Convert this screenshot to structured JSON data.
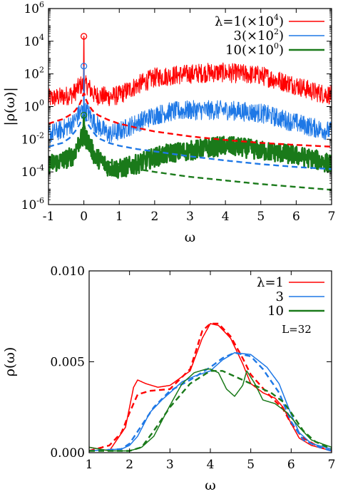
{
  "chart_data": [
    {
      "type": "line",
      "xlabel": "ω",
      "ylabel": "|ρ(ω)|",
      "xlim": [
        -1,
        7
      ],
      "ylim": [
        1e-06,
        1000000.0
      ],
      "yscale": "log",
      "xticks": [
        "-1",
        "0",
        "1",
        "2",
        "3",
        "4",
        "5",
        "6",
        "7"
      ],
      "yticks": [
        {
          "value": 1e-06,
          "base": "10",
          "exp": "-6"
        },
        {
          "value": 0.0001,
          "base": "10",
          "exp": "-4"
        },
        {
          "value": 0.01,
          "base": "10",
          "exp": "-2"
        },
        {
          "value": 1,
          "base": "10",
          "exp": "0"
        },
        {
          "value": 100,
          "base": "10",
          "exp": "2"
        },
        {
          "value": 10000,
          "base": "10",
          "exp": "4"
        },
        {
          "value": 1000000,
          "base": "10",
          "exp": "6"
        }
      ],
      "legend_position": "top-right",
      "legend": [
        {
          "text": "λ=1(×10",
          "exp": "4",
          "close": ")",
          "color": "#ff0000"
        },
        {
          "text": "3(×10",
          "exp": "2",
          "close": ")",
          "color": "#1e78e6"
        },
        {
          "text": "10(×10",
          "exp": "0",
          "close": ")",
          "color": "#1a7a1a"
        }
      ],
      "series": [
        {
          "color": "#ff0000",
          "style": "noisy",
          "peak": {
            "x": 0,
            "y": 20000
          },
          "x": [
            -1,
            -0.6,
            -0.3,
            -0.1,
            0.1,
            0.3,
            0.7,
            1,
            1.5,
            2,
            2.5,
            3,
            3.5,
            4,
            4.5,
            5,
            5.5,
            6,
            6.5,
            7
          ],
          "y": [
            3,
            4,
            6,
            20,
            20,
            5,
            4,
            5,
            20,
            60,
            80,
            100,
            120,
            120,
            100,
            80,
            40,
            20,
            8,
            5
          ]
        },
        {
          "color": "#1e78e6",
          "style": "noisy",
          "peak": {
            "x": 0,
            "y": 300
          },
          "x": [
            -1,
            -0.6,
            -0.3,
            -0.1,
            0.1,
            0.3,
            0.7,
            1,
            1.5,
            2,
            2.5,
            3,
            3.5,
            4,
            4.5,
            5,
            5.5,
            6,
            6.5,
            7
          ],
          "y": [
            0.02,
            0.04,
            0.1,
            0.5,
            0.5,
            0.1,
            0.02,
            0.03,
            0.1,
            0.3,
            0.5,
            0.6,
            0.6,
            0.6,
            0.5,
            0.4,
            0.2,
            0.1,
            0.05,
            0.03
          ]
        },
        {
          "color": "#1a7a1a",
          "style": "noisy-thick",
          "peak": {
            "x": 0,
            "y": 0.3
          },
          "x": [
            -1,
            -0.6,
            -0.3,
            -0.1,
            0.1,
            0.3,
            0.7,
            1,
            1.5,
            2,
            2.5,
            3,
            3.5,
            4,
            4.5,
            5,
            5.5,
            6,
            6.5,
            7
          ],
          "y": [
            0.0003,
            0.0005,
            0.001,
            0.01,
            0.01,
            0.001,
            0.0002,
            0.00015,
            0.0003,
            0.0008,
            0.0015,
            0.002,
            0.003,
            0.004,
            0.003,
            0.002,
            0.0015,
            0.001,
            0.0006,
            0.0003
          ]
        },
        {
          "color": "#ff0000",
          "style": "dashed",
          "x": [
            -1,
            -0.6,
            -0.4,
            -0.25,
            -0.12,
            -0.05,
            0,
            0.05,
            0.12,
            0.25,
            0.4,
            0.7,
            1,
            1.5,
            2,
            3,
            4,
            5,
            6,
            7
          ],
          "y": [
            0.09,
            0.17,
            0.3,
            0.55,
            1.4,
            3,
            8,
            3,
            1.4,
            0.55,
            0.3,
            0.15,
            0.09,
            0.05,
            0.03,
            0.015,
            0.009,
            0.006,
            0.0045,
            0.0035
          ]
        },
        {
          "color": "#1e78e6",
          "style": "dashed",
          "x": [
            -1,
            -0.6,
            -0.4,
            -0.25,
            -0.12,
            -0.05,
            0,
            0.05,
            0.12,
            0.25,
            0.4,
            0.7,
            1,
            1.5,
            2,
            3,
            4,
            5,
            6,
            7
          ],
          "y": [
            0.0035,
            0.006,
            0.012,
            0.03,
            0.08,
            0.2,
            0.5,
            0.2,
            0.08,
            0.03,
            0.012,
            0.006,
            0.004,
            0.0025,
            0.0018,
            0.0009,
            0.0005,
            0.0003,
            0.0002,
            0.00015
          ]
        },
        {
          "color": "#1a7a1a",
          "style": "dashed",
          "x": [
            -0.4,
            -0.25,
            -0.12,
            -0.05,
            0,
            0.05,
            0.12,
            0.25,
            0.4,
            0.7,
            1,
            1.5,
            2,
            3,
            4,
            5,
            6,
            7
          ],
          "y": [
            0.0008,
            0.002,
            0.006,
            0.03,
            0.1,
            0.03,
            0.006,
            0.002,
            0.0008,
            0.0004,
            0.0003,
            0.00015,
            0.0001,
            5e-05,
            3e-05,
            1.8e-05,
            1.2e-05,
            8e-06
          ]
        }
      ]
    },
    {
      "type": "line",
      "xlabel": "ω",
      "ylabel": "ρ(ω)",
      "xlim": [
        1,
        7
      ],
      "ylim": [
        0,
        0.01
      ],
      "xticks": [
        "1",
        "2",
        "3",
        "4",
        "5",
        "6",
        "7"
      ],
      "yticks": [
        {
          "value": 0,
          "label": "0.000"
        },
        {
          "value": 0.005,
          "label": "0.005"
        },
        {
          "value": 0.01,
          "label": "0.010"
        }
      ],
      "legend_position": "top-right",
      "legend": [
        {
          "text": "λ=1",
          "color": "#ff0000"
        },
        {
          "text": "3",
          "color": "#1e78e6"
        },
        {
          "text": "10",
          "color": "#1a7a1a"
        }
      ],
      "annotation": "L=32",
      "series": [
        {
          "color": "#ff0000",
          "style": "solid",
          "x": [
            1,
            1.5,
            1.9,
            2.1,
            2.2,
            2.4,
            2.7,
            3,
            3.5,
            3.8,
            4,
            4.2,
            4.5,
            4.8,
            5,
            5.3,
            5.6,
            5.8,
            6,
            6.2,
            6.5,
            7
          ],
          "y": [
            0.0003,
            0.0001,
            0.0014,
            0.0036,
            0.004,
            0.0038,
            0.0036,
            0.0037,
            0.0045,
            0.0063,
            0.0071,
            0.007,
            0.0063,
            0.0049,
            0.0038,
            0.0033,
            0.003,
            0.0025,
            0.0016,
            0.0008,
            0.0004,
            0.0001
          ]
        },
        {
          "color": "#ff0000",
          "style": "dashed",
          "x": [
            1,
            1.5,
            1.8,
            2,
            2.2,
            2.5,
            3,
            3.5,
            3.8,
            4,
            4.2,
            4.5,
            4.8,
            5,
            5.4,
            5.8,
            6,
            6.3,
            6.7,
            7
          ],
          "y": [
            0.0001,
            0.0004,
            0.0011,
            0.0022,
            0.0032,
            0.0034,
            0.0035,
            0.0046,
            0.0067,
            0.0071,
            0.0071,
            0.0064,
            0.0052,
            0.0043,
            0.0033,
            0.0024,
            0.0016,
            0.0008,
            0.0003,
            0.0001
          ]
        },
        {
          "color": "#1e78e6",
          "style": "solid",
          "x": [
            1,
            1.8,
            2,
            2.2,
            2.5,
            2.8,
            3,
            3.3,
            3.6,
            4,
            4.3,
            4.6,
            5,
            5.4,
            5.7,
            6,
            6.2,
            6.5,
            7
          ],
          "y": [
            0.0001,
            0.0002,
            0.0004,
            0.0009,
            0.0022,
            0.0029,
            0.0033,
            0.0039,
            0.0042,
            0.0045,
            0.0051,
            0.0055,
            0.0054,
            0.0047,
            0.0038,
            0.0021,
            0.0011,
            0.0005,
            0.0002
          ]
        },
        {
          "color": "#1e78e6",
          "style": "dashed",
          "x": [
            1,
            1.8,
            2,
            2.3,
            2.6,
            3,
            3.5,
            4,
            4.3,
            4.6,
            5,
            5.3,
            5.7,
            6,
            6.3,
            6.7,
            7
          ],
          "y": [
            0.0001,
            0.0002,
            0.0005,
            0.0015,
            0.0025,
            0.0034,
            0.004,
            0.0047,
            0.0052,
            0.0055,
            0.0053,
            0.0046,
            0.0033,
            0.0017,
            0.0007,
            0.0003,
            0.0001
          ]
        },
        {
          "color": "#1a7a1a",
          "style": "solid",
          "x": [
            1,
            1.5,
            2,
            2.3,
            2.6,
            3,
            3.3,
            3.6,
            3.9,
            4,
            4.2,
            4.4,
            4.6,
            4.8,
            4.9,
            5.1,
            5.3,
            5.6,
            5.9,
            6.2,
            6.5,
            7
          ],
          "y": [
            0.0003,
            0.0001,
            0.0001,
            0.0003,
            0.0009,
            0.0026,
            0.0038,
            0.0044,
            0.0046,
            0.0046,
            0.0044,
            0.0035,
            0.0031,
            0.0037,
            0.0045,
            0.0038,
            0.0029,
            0.0027,
            0.0022,
            0.0014,
            0.0007,
            0.0003
          ]
        },
        {
          "color": "#1a7a1a",
          "style": "dashed",
          "x": [
            1,
            2,
            2.3,
            2.6,
            3,
            3.5,
            4,
            4.3,
            4.6,
            5,
            5.5,
            5.8,
            6,
            6.3,
            6.6,
            7
          ],
          "y": [
            0.0001,
            0.0001,
            0.0003,
            0.0012,
            0.0025,
            0.0038,
            0.0045,
            0.0045,
            0.0042,
            0.0038,
            0.0033,
            0.0028,
            0.0022,
            0.0012,
            0.0006,
            0.0002
          ]
        }
      ]
    }
  ]
}
